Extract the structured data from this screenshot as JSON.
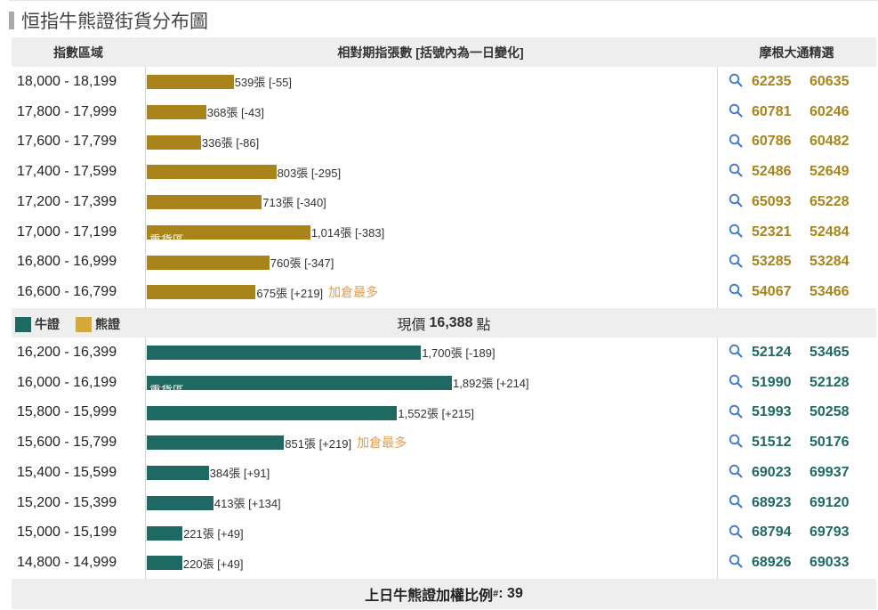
{
  "title": "恒指牛熊證街貨分布圖",
  "header": {
    "col_range": "指數區域",
    "col_contracts": "相對期指張數 [括號內為一日變化]",
    "col_picks": "摩根大通精選"
  },
  "legend": {
    "bull": "牛證",
    "bear": "熊證"
  },
  "current_price": {
    "prefix": "現價",
    "value": "16,388",
    "suffix": "點"
  },
  "heavy_label": "重貨區",
  "most_label": "加倉最多",
  "footer": {
    "label": "上日牛熊證加權比例",
    "mark": "#",
    "value": ": 39"
  },
  "colors": {
    "bear": "#a8841a",
    "bull": "#1e6a62",
    "bear_code": "#a8841a",
    "bull_code": "#1e6a62",
    "legend_bear": "#d4a83a"
  },
  "chart_data": {
    "type": "bar",
    "unit": "張",
    "bear": [
      {
        "range": "18,000 - 18,199",
        "value": 539,
        "text": "539張 [-55]",
        "codes": [
          "62235",
          "60635"
        ]
      },
      {
        "range": "17,800 - 17,999",
        "value": 368,
        "text": "368張 [-43]",
        "codes": [
          "60781",
          "60246"
        ]
      },
      {
        "range": "17,600 - 17,799",
        "value": 336,
        "text": "336張 [-86]",
        "codes": [
          "60786",
          "60482"
        ]
      },
      {
        "range": "17,400 - 17,599",
        "value": 803,
        "text": "803張 [-295]",
        "codes": [
          "52486",
          "52649"
        ]
      },
      {
        "range": "17,200 - 17,399",
        "value": 713,
        "text": "713張 [-340]",
        "codes": [
          "65093",
          "65228"
        ]
      },
      {
        "range": "17,000 - 17,199",
        "value": 1014,
        "text": "1,014張 [-383]",
        "codes": [
          "52321",
          "52484"
        ],
        "heavy": true
      },
      {
        "range": "16,800 - 16,999",
        "value": 760,
        "text": "760張 [-347]",
        "codes": [
          "53285",
          "53284"
        ]
      },
      {
        "range": "16,600 - 16,799",
        "value": 675,
        "text": "675張 [+219]",
        "codes": [
          "54067",
          "53466"
        ],
        "most": true
      }
    ],
    "bull": [
      {
        "range": "16,200 - 16,399",
        "value": 1700,
        "text": "1,700張 [-189]",
        "codes": [
          "52124",
          "53465"
        ]
      },
      {
        "range": "16,000 - 16,199",
        "value": 1892,
        "text": "1,892張 [+214]",
        "codes": [
          "51990",
          "52128"
        ],
        "heavy": true
      },
      {
        "range": "15,800 - 15,999",
        "value": 1552,
        "text": "1,552張 [+215]",
        "codes": [
          "51993",
          "50258"
        ]
      },
      {
        "range": "15,600 - 15,799",
        "value": 851,
        "text": "851張 [+219]",
        "codes": [
          "51512",
          "50176"
        ],
        "most": true
      },
      {
        "range": "15,400 - 15,599",
        "value": 384,
        "text": "384張 [+91]",
        "codes": [
          "69023",
          "69937"
        ]
      },
      {
        "range": "15,200 - 15,399",
        "value": 413,
        "text": "413張 [+134]",
        "codes": [
          "68923",
          "69120"
        ]
      },
      {
        "range": "15,000 - 15,199",
        "value": 221,
        "text": "221張 [+49]",
        "codes": [
          "68794",
          "69793"
        ]
      },
      {
        "range": "14,800 - 14,999",
        "value": 220,
        "text": "220張 [+49]",
        "codes": [
          "68926",
          "69033"
        ]
      }
    ]
  }
}
